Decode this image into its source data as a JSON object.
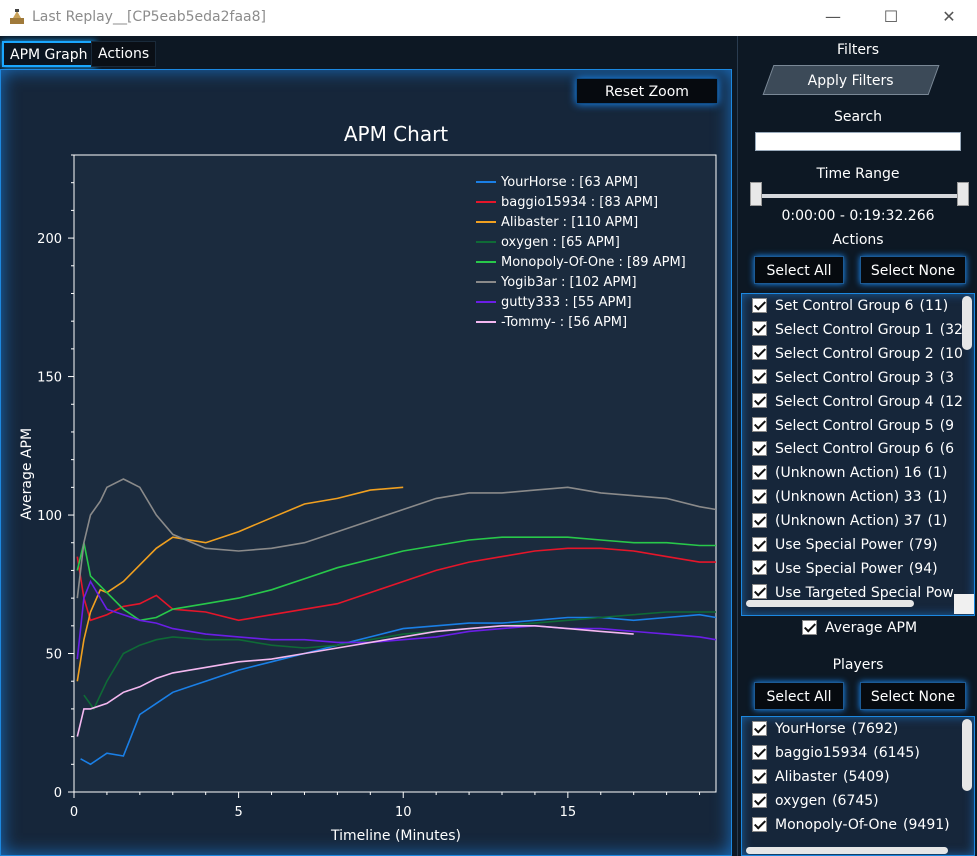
{
  "window": {
    "title": "Last Replay__[CP5eab5eda2faa8]",
    "icon": "pen-icon",
    "controls": {
      "minimize": "—",
      "maximize": "☐",
      "close": "✕"
    }
  },
  "tabs": [
    {
      "label": "APM Graph",
      "active": true
    },
    {
      "label": "Actions",
      "active": false
    }
  ],
  "toolbar": {
    "reset_zoom_label": "Reset Zoom"
  },
  "chart_data": {
    "type": "line",
    "title": "APM Chart",
    "xlabel": "Timeline (Minutes)",
    "ylabel": "Average APM",
    "xlim": [
      0,
      19.5
    ],
    "ylim": [
      0,
      230
    ],
    "xticks": [
      0,
      5,
      10,
      15
    ],
    "yticks": [
      0,
      50,
      100,
      150,
      200
    ],
    "legend_position": "top-right",
    "grid": false,
    "series": [
      {
        "name": "YourHorse : [63 APM]",
        "color": "#1a7fe6",
        "x": [
          0.2,
          0.5,
          1.0,
          1.5,
          2.0,
          2.5,
          3.0,
          3.5,
          4.0,
          5.0,
          6.0,
          7.0,
          8.0,
          9.0,
          10.0,
          11.0,
          12.0,
          13.0,
          14.0,
          15.0,
          16.0,
          17.0,
          18.0,
          19.0,
          19.5
        ],
        "y": [
          12,
          10,
          14,
          13,
          28,
          32,
          36,
          38,
          40,
          44,
          47,
          50,
          53,
          56,
          59,
          60,
          61,
          61,
          62,
          63,
          63,
          62,
          63,
          64,
          63
        ]
      },
      {
        "name": "baggio15934 : [83 APM]",
        "color": "#e5162a",
        "x": [
          0.1,
          0.3,
          0.5,
          1.0,
          1.5,
          2.0,
          2.5,
          3.0,
          4.0,
          5.0,
          6.0,
          7.0,
          8.0,
          9.0,
          10.0,
          11.0,
          12.0,
          13.0,
          14.0,
          15.0,
          16.0,
          17.0,
          18.0,
          19.0,
          19.5
        ],
        "y": [
          85,
          70,
          62,
          64,
          67,
          68,
          71,
          66,
          65,
          62,
          64,
          66,
          68,
          72,
          76,
          80,
          83,
          85,
          87,
          88,
          88,
          87,
          85,
          83,
          83
        ]
      },
      {
        "name": "Alibaster : [110 APM]",
        "color": "#f0a020",
        "x": [
          0.1,
          0.3,
          0.5,
          0.8,
          1.0,
          1.5,
          2.0,
          2.5,
          3.0,
          4.0,
          5.0,
          6.0,
          7.0,
          8.0,
          9.0,
          10.0
        ],
        "y": [
          40,
          55,
          65,
          73,
          72,
          76,
          82,
          88,
          92,
          90,
          94,
          99,
          104,
          106,
          109,
          110
        ]
      },
      {
        "name": "oxygen : [65 APM]",
        "color": "#0f6a36",
        "x": [
          0.3,
          0.6,
          1.0,
          1.5,
          2.0,
          2.5,
          3.0,
          4.0,
          5.0,
          6.0,
          7.0,
          8.0,
          9.0,
          10.0,
          11.0,
          12.0,
          13.0,
          14.0,
          15.0,
          16.0,
          17.0,
          18.0,
          19.0,
          19.5
        ],
        "y": [
          35,
          30,
          40,
          50,
          53,
          55,
          56,
          55,
          55,
          53,
          52,
          53,
          55,
          57,
          58,
          59,
          60,
          61,
          62,
          63,
          64,
          65,
          65,
          65
        ]
      },
      {
        "name": "Monopoly-Of-One : [89 APM]",
        "color": "#28c84a",
        "x": [
          0.1,
          0.3,
          0.5,
          1.0,
          1.5,
          2.0,
          2.5,
          3.0,
          4.0,
          5.0,
          6.0,
          7.0,
          8.0,
          9.0,
          10.0,
          11.0,
          12.0,
          13.0,
          14.0,
          15.0,
          16.0,
          17.0,
          18.0,
          19.0,
          19.5
        ],
        "y": [
          80,
          90,
          78,
          72,
          66,
          62,
          63,
          66,
          68,
          70,
          73,
          77,
          81,
          84,
          87,
          89,
          91,
          92,
          92,
          92,
          91,
          90,
          90,
          89,
          89
        ]
      },
      {
        "name": "Yogib3ar : [102 APM]",
        "color": "#8a8a8a",
        "x": [
          0.1,
          0.3,
          0.5,
          0.8,
          1.0,
          1.5,
          2.0,
          2.5,
          3.0,
          4.0,
          5.0,
          6.0,
          7.0,
          8.0,
          9.0,
          10.0,
          11.0,
          12.0,
          13.0,
          14.0,
          15.0,
          16.0,
          17.0,
          18.0,
          19.0,
          19.5
        ],
        "y": [
          70,
          90,
          100,
          105,
          110,
          113,
          110,
          100,
          93,
          88,
          87,
          88,
          90,
          94,
          98,
          102,
          106,
          108,
          108,
          109,
          110,
          108,
          107,
          106,
          103,
          102
        ]
      },
      {
        "name": "gutty333 : [55 APM]",
        "color": "#6a1ee6",
        "x": [
          0.1,
          0.3,
          0.5,
          0.8,
          1.0,
          1.5,
          2.0,
          2.5,
          3.0,
          4.0,
          5.0,
          6.0,
          7.0,
          8.0,
          9.0,
          10.0,
          11.0,
          12.0,
          13.0,
          14.0,
          15.0,
          16.0,
          17.0,
          18.0,
          19.0,
          19.5
        ],
        "y": [
          48,
          70,
          76,
          70,
          66,
          64,
          62,
          61,
          59,
          57,
          56,
          55,
          55,
          54,
          54,
          55,
          56,
          58,
          59,
          60,
          59,
          59,
          58,
          57,
          56,
          55
        ]
      },
      {
        "name": "-Tommy- : [56 APM]",
        "color": "#f4b8f0",
        "x": [
          0.1,
          0.3,
          0.5,
          1.0,
          1.5,
          2.0,
          2.5,
          3.0,
          4.0,
          5.0,
          6.0,
          7.0,
          8.0,
          9.0,
          10.0,
          11.0,
          12.0,
          13.0,
          14.0,
          15.0,
          16.0,
          17.0
        ],
        "y": [
          20,
          30,
          30,
          32,
          36,
          38,
          41,
          43,
          45,
          47,
          48,
          50,
          52,
          54,
          56,
          58,
          59,
          60,
          60,
          59,
          58,
          57
        ]
      }
    ]
  },
  "sidebar": {
    "filters_title": "Filters",
    "apply_filters_label": "Apply Filters",
    "search_label": "Search",
    "search_value": "",
    "time_range_label": "Time Range",
    "time_range_value": "0:00:00 - 0:19:32.266",
    "actions_label": "Actions",
    "select_all_label": "Select All",
    "select_none_label": "Select None",
    "actions": [
      {
        "label": "Set Control Group 6",
        "count": "(11)"
      },
      {
        "label": "Select Control Group 1",
        "count": "(32"
      },
      {
        "label": "Select Control Group 2",
        "count": "(10"
      },
      {
        "label": "Select Control Group 3",
        "count": "(3"
      },
      {
        "label": "Select Control Group 4",
        "count": "(12"
      },
      {
        "label": "Select Control Group 5",
        "count": "(9"
      },
      {
        "label": "Select Control Group 6",
        "count": "(6"
      },
      {
        "label": "(Unknown Action) 16",
        "count": "(1)"
      },
      {
        "label": "(Unknown Action) 33",
        "count": "(1)"
      },
      {
        "label": "(Unknown Action) 37",
        "count": "(1)"
      },
      {
        "label": "Use Special Power",
        "count": "(79)"
      },
      {
        "label": "Use Special Power",
        "count": "(94)"
      },
      {
        "label": "Use Targeted Special Pow",
        "count": ""
      }
    ],
    "average_apm_label": "Average APM",
    "players_label": "Players",
    "players": [
      {
        "label": "YourHorse",
        "count": "(7692)"
      },
      {
        "label": "baggio15934",
        "count": "(6145)"
      },
      {
        "label": "Alibaster",
        "count": "(5409)"
      },
      {
        "label": "oxygen",
        "count": "(6745)"
      },
      {
        "label": "Monopoly-Of-One",
        "count": "(9491)"
      }
    ]
  }
}
